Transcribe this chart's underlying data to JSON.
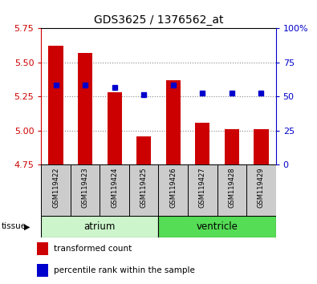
{
  "title": "GDS3625 / 1376562_at",
  "samples": [
    "GSM119422",
    "GSM119423",
    "GSM119424",
    "GSM119425",
    "GSM119426",
    "GSM119427",
    "GSM119428",
    "GSM119429"
  ],
  "red_values": [
    5.62,
    5.57,
    5.28,
    4.96,
    5.37,
    5.06,
    5.01,
    5.01
  ],
  "blue_values": [
    5.335,
    5.335,
    5.315,
    5.265,
    5.335,
    5.275,
    5.275,
    5.275
  ],
  "ymin": 4.75,
  "ymax": 5.75,
  "yticks_left": [
    4.75,
    5.0,
    5.25,
    5.5,
    5.75
  ],
  "yticks_right": [
    0,
    25,
    50,
    75,
    100
  ],
  "tissue_groups": [
    {
      "label": "atrium",
      "start": 0,
      "end": 3,
      "color": "#ccf5cc"
    },
    {
      "label": "ventricle",
      "start": 4,
      "end": 7,
      "color": "#55dd55"
    }
  ],
  "left_color": "#cc0000",
  "right_color": "#0000cc",
  "bar_bottom": 4.75,
  "bar_width": 0.5,
  "blue_marker_size": 5,
  "grid_color": "#888888",
  "legend": [
    {
      "color": "#cc0000",
      "label": "transformed count"
    },
    {
      "color": "#0000cc",
      "label": "percentile rank within the sample"
    }
  ],
  "sample_bg": "#cccccc",
  "plot_bg": "#ffffff"
}
